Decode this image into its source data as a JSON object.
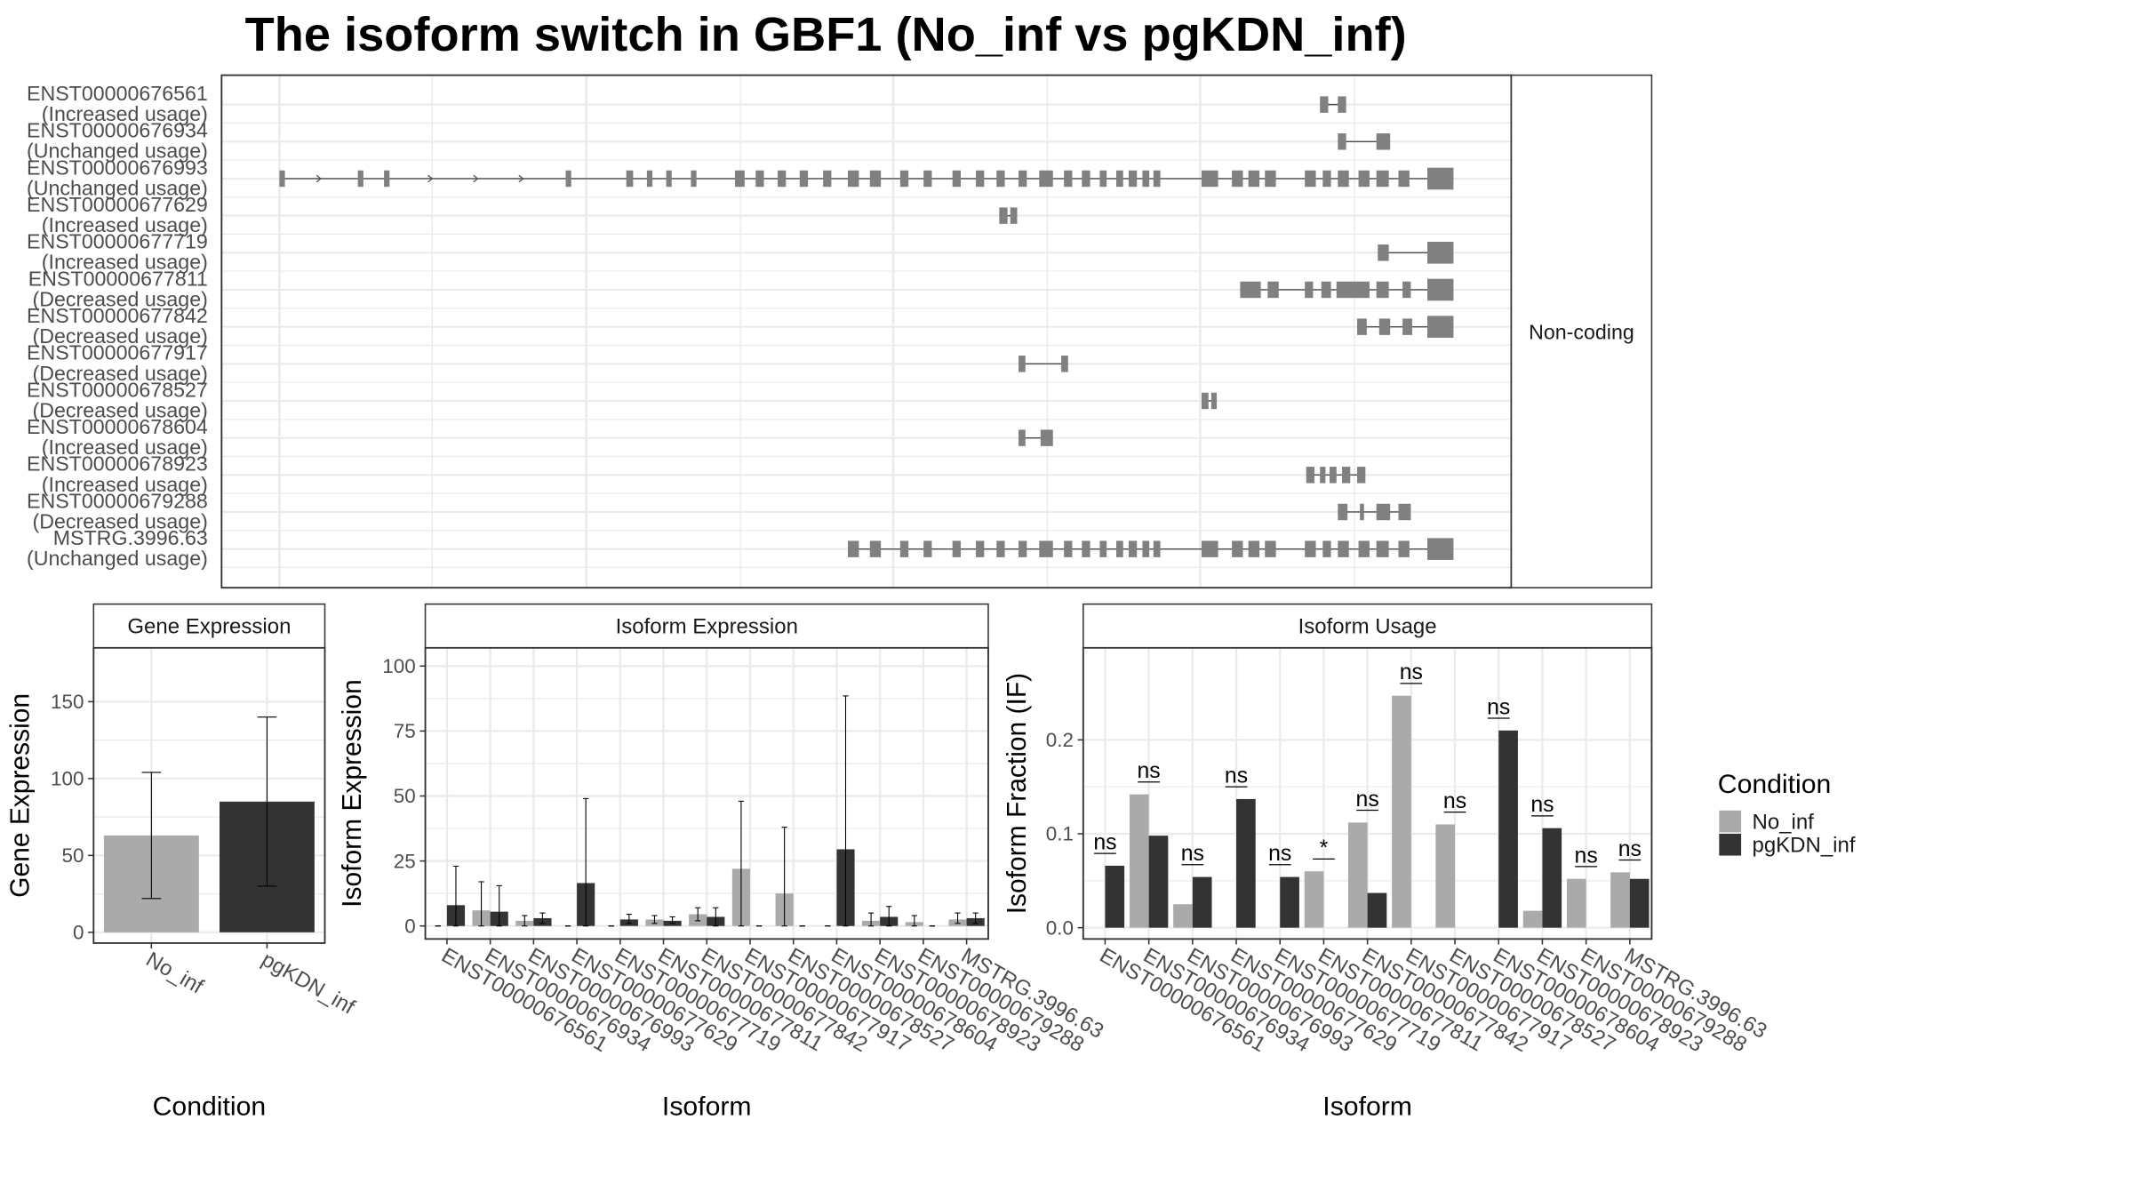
{
  "title": "The isoform switch in GBF1 (No_inf vs pgKDN_inf)",
  "colors": {
    "no_inf": "#aaaaaa",
    "pgkdn_inf": "#333333",
    "exon": "#808080",
    "grid": "#ebebeb",
    "strip": "#ffffff"
  },
  "legend": {
    "title": "Condition",
    "items": [
      "No_inf",
      "pgKDN_inf"
    ]
  },
  "chart_data": [
    {
      "type": "gene-structure",
      "panel_label": "Non-coding",
      "isoforms": [
        {
          "id": "ENST00000676561",
          "usage": "(Increased usage)",
          "exons": [
            [
              959,
              965
            ],
            [
              972,
              978
            ]
          ]
        },
        {
          "id": "ENST00000676934",
          "usage": "(Unchanged usage)",
          "exons": [
            [
              972,
              978
            ],
            [
              1000,
              1010
            ]
          ]
        },
        {
          "id": "ENST00000676993",
          "usage": "(Unchanged usage)",
          "exons": [
            [
              203,
              207
            ],
            [
              260,
              264
            ],
            [
              279,
              283
            ],
            [
              411,
              415
            ],
            [
              455,
              460
            ],
            [
              470,
              474
            ],
            [
              484,
              488
            ],
            [
              502,
              506
            ],
            [
              534,
              541
            ],
            [
              549,
              555
            ],
            [
              565,
              571
            ],
            [
              581,
              587
            ],
            [
              598,
              604
            ],
            [
              616,
              624
            ],
            [
              632,
              640
            ],
            [
              654,
              660
            ],
            [
              671,
              677
            ],
            [
              692,
              698
            ],
            [
              709,
              715
            ],
            [
              724,
              730
            ],
            [
              740,
              746
            ],
            [
              755,
              765
            ],
            [
              773,
              779
            ],
            [
              786,
              792
            ],
            [
              799,
              804
            ],
            [
              811,
              816
            ],
            [
              820,
              826
            ],
            [
              830,
              835
            ],
            [
              838,
              843
            ],
            [
              873,
              885
            ],
            [
              895,
              903
            ],
            [
              907,
              915
            ],
            [
              919,
              927
            ],
            [
              948,
              956
            ],
            [
              961,
              967
            ],
            [
              972,
              980
            ],
            [
              987,
              995
            ],
            [
              1000,
              1009
            ],
            [
              1016,
              1024
            ],
            [
              1037,
              1056
            ]
          ]
        },
        {
          "id": "ENST00000677629",
          "usage": "(Increased usage)",
          "exons": [
            [
              726,
              732
            ],
            [
              734,
              739
            ]
          ]
        },
        {
          "id": "ENST00000677719",
          "usage": "(Increased usage)",
          "exons": [
            [
              1001,
              1009
            ],
            [
              1037,
              1056
            ]
          ]
        },
        {
          "id": "ENST00000677811",
          "usage": "(Decreased usage)",
          "exons": [
            [
              901,
              916
            ],
            [
              921,
              929
            ],
            [
              948,
              954
            ],
            [
              960,
              967
            ],
            [
              971,
              995
            ],
            [
              1000,
              1009
            ],
            [
              1019,
              1025
            ],
            [
              1037,
              1056
            ]
          ]
        },
        {
          "id": "ENST00000677842",
          "usage": "(Decreased usage)",
          "exons": [
            [
              986,
              993
            ],
            [
              1002,
              1010
            ],
            [
              1019,
              1026
            ],
            [
              1037,
              1056
            ]
          ]
        },
        {
          "id": "ENST00000677917",
          "usage": "(Decreased usage)",
          "exons": [
            [
              740,
              745
            ],
            [
              771,
              776
            ]
          ]
        },
        {
          "id": "ENST00000678527",
          "usage": "(Decreased usage)",
          "exons": [
            [
              873,
              878
            ],
            [
              880,
              884
            ]
          ]
        },
        {
          "id": "ENST00000678604",
          "usage": "(Increased usage)",
          "exons": [
            [
              740,
              745
            ],
            [
              756,
              765
            ]
          ]
        },
        {
          "id": "ENST00000678923",
          "usage": "(Increased usage)",
          "exons": [
            [
              949,
              955
            ],
            [
              959,
              963
            ],
            [
              966,
              971
            ],
            [
              975,
              981
            ],
            [
              986,
              992
            ]
          ]
        },
        {
          "id": "ENST00000679288",
          "usage": "(Decreased usage)",
          "exons": [
            [
              972,
              979
            ],
            [
              988,
              991
            ],
            [
              1000,
              1010
            ],
            [
              1016,
              1025
            ]
          ]
        },
        {
          "id": "MSTRG.3996.63",
          "usage": "(Unchanged usage)",
          "exons": [
            [
              616,
              624
            ],
            [
              632,
              640
            ],
            [
              654,
              660
            ],
            [
              671,
              677
            ],
            [
              692,
              698
            ],
            [
              709,
              715
            ],
            [
              724,
              730
            ],
            [
              740,
              746
            ],
            [
              755,
              765
            ],
            [
              773,
              779
            ],
            [
              786,
              792
            ],
            [
              799,
              804
            ],
            [
              811,
              816
            ],
            [
              820,
              826
            ],
            [
              830,
              835
            ],
            [
              838,
              843
            ],
            [
              873,
              885
            ],
            [
              895,
              903
            ],
            [
              907,
              915
            ],
            [
              919,
              927
            ],
            [
              948,
              956
            ],
            [
              961,
              967
            ],
            [
              972,
              980
            ],
            [
              987,
              995
            ],
            [
              1000,
              1009
            ],
            [
              1016,
              1024
            ],
            [
              1037,
              1056
            ]
          ]
        }
      ]
    },
    {
      "type": "bar",
      "title": "Gene Expression",
      "xlabel": "Condition",
      "ylabel": "Gene Expression",
      "ylim": [
        -7,
        185
      ],
      "yticks": [
        0,
        50,
        100,
        150
      ],
      "categories": [
        "No_inf",
        "pgKDN_inf"
      ],
      "values": [
        63,
        85
      ],
      "error_low": [
        22,
        30
      ],
      "error_high": [
        104,
        140
      ]
    },
    {
      "type": "bar",
      "title": "Isoform Expression",
      "xlabel": "Isoform",
      "ylabel": "Isoform Expression",
      "ylim": [
        -5,
        107
      ],
      "yticks": [
        0,
        25,
        50,
        75,
        100
      ],
      "categories": [
        "ENST00000676561",
        "ENST00000676934",
        "ENST00000676993",
        "ENST00000677629",
        "ENST00000677719",
        "ENST00000677811",
        "ENST00000677842",
        "ENST00000677917",
        "ENST00000678527",
        "ENST00000678604",
        "ENST00000678923",
        "ENST00000679288",
        "MSTRG.3996.63"
      ],
      "series": [
        {
          "name": "No_inf",
          "values": [
            0,
            6,
            2,
            0,
            0,
            2.5,
            4.5,
            22,
            12.5,
            0,
            2,
            1.5,
            2.5
          ],
          "error_low": [
            0,
            0,
            0,
            0,
            0,
            1,
            2,
            0,
            0,
            0,
            0,
            0,
            1
          ],
          "error_high": [
            0,
            17,
            4,
            0,
            0,
            4,
            7,
            48,
            38,
            0,
            5,
            4,
            5
          ]
        },
        {
          "name": "pgKDN_inf",
          "values": [
            8,
            5.5,
            3,
            16.5,
            2.5,
            2,
            3.5,
            0,
            0,
            29.5,
            3.5,
            0,
            3
          ],
          "error_low": [
            0,
            0,
            1,
            0,
            1,
            1,
            0,
            0,
            0,
            0,
            0,
            0,
            1
          ],
          "error_high": [
            23,
            15.5,
            5,
            49,
            4.5,
            3.5,
            7,
            0,
            0,
            88.5,
            7.5,
            0,
            5
          ]
        }
      ]
    },
    {
      "type": "bar",
      "title": "Isoform Usage",
      "xlabel": "Isoform",
      "ylabel": "Isoform Fraction (IF)",
      "ylim": [
        -0.012,
        0.298
      ],
      "yticks": [
        0.0,
        0.1,
        0.2
      ],
      "ytick_labels": [
        "0.0",
        "0.1",
        "0.2"
      ],
      "categories": [
        "ENST00000676561",
        "ENST00000676934",
        "ENST00000676993",
        "ENST00000677629",
        "ENST00000677719",
        "ENST00000677811",
        "ENST00000677842",
        "ENST00000677917",
        "ENST00000678527",
        "ENST00000678604",
        "ENST00000678923",
        "ENST00000679288",
        "MSTRG.3996.63"
      ],
      "series": [
        {
          "name": "No_inf",
          "values": [
            0,
            0.142,
            0.025,
            0,
            0,
            0.06,
            0.112,
            0.247,
            0.11,
            0,
            0.018,
            0.052,
            0.059
          ]
        },
        {
          "name": "pgKDN_inf",
          "values": [
            0.066,
            0.098,
            0.054,
            0.137,
            0.054,
            0,
            0.037,
            0,
            0,
            0.21,
            0.106,
            0,
            0.052
          ]
        }
      ],
      "significance": [
        "ns",
        "ns",
        "ns",
        "ns",
        "ns",
        "*",
        "ns",
        "ns",
        "ns",
        "ns",
        "ns",
        "ns",
        "ns"
      ]
    }
  ]
}
